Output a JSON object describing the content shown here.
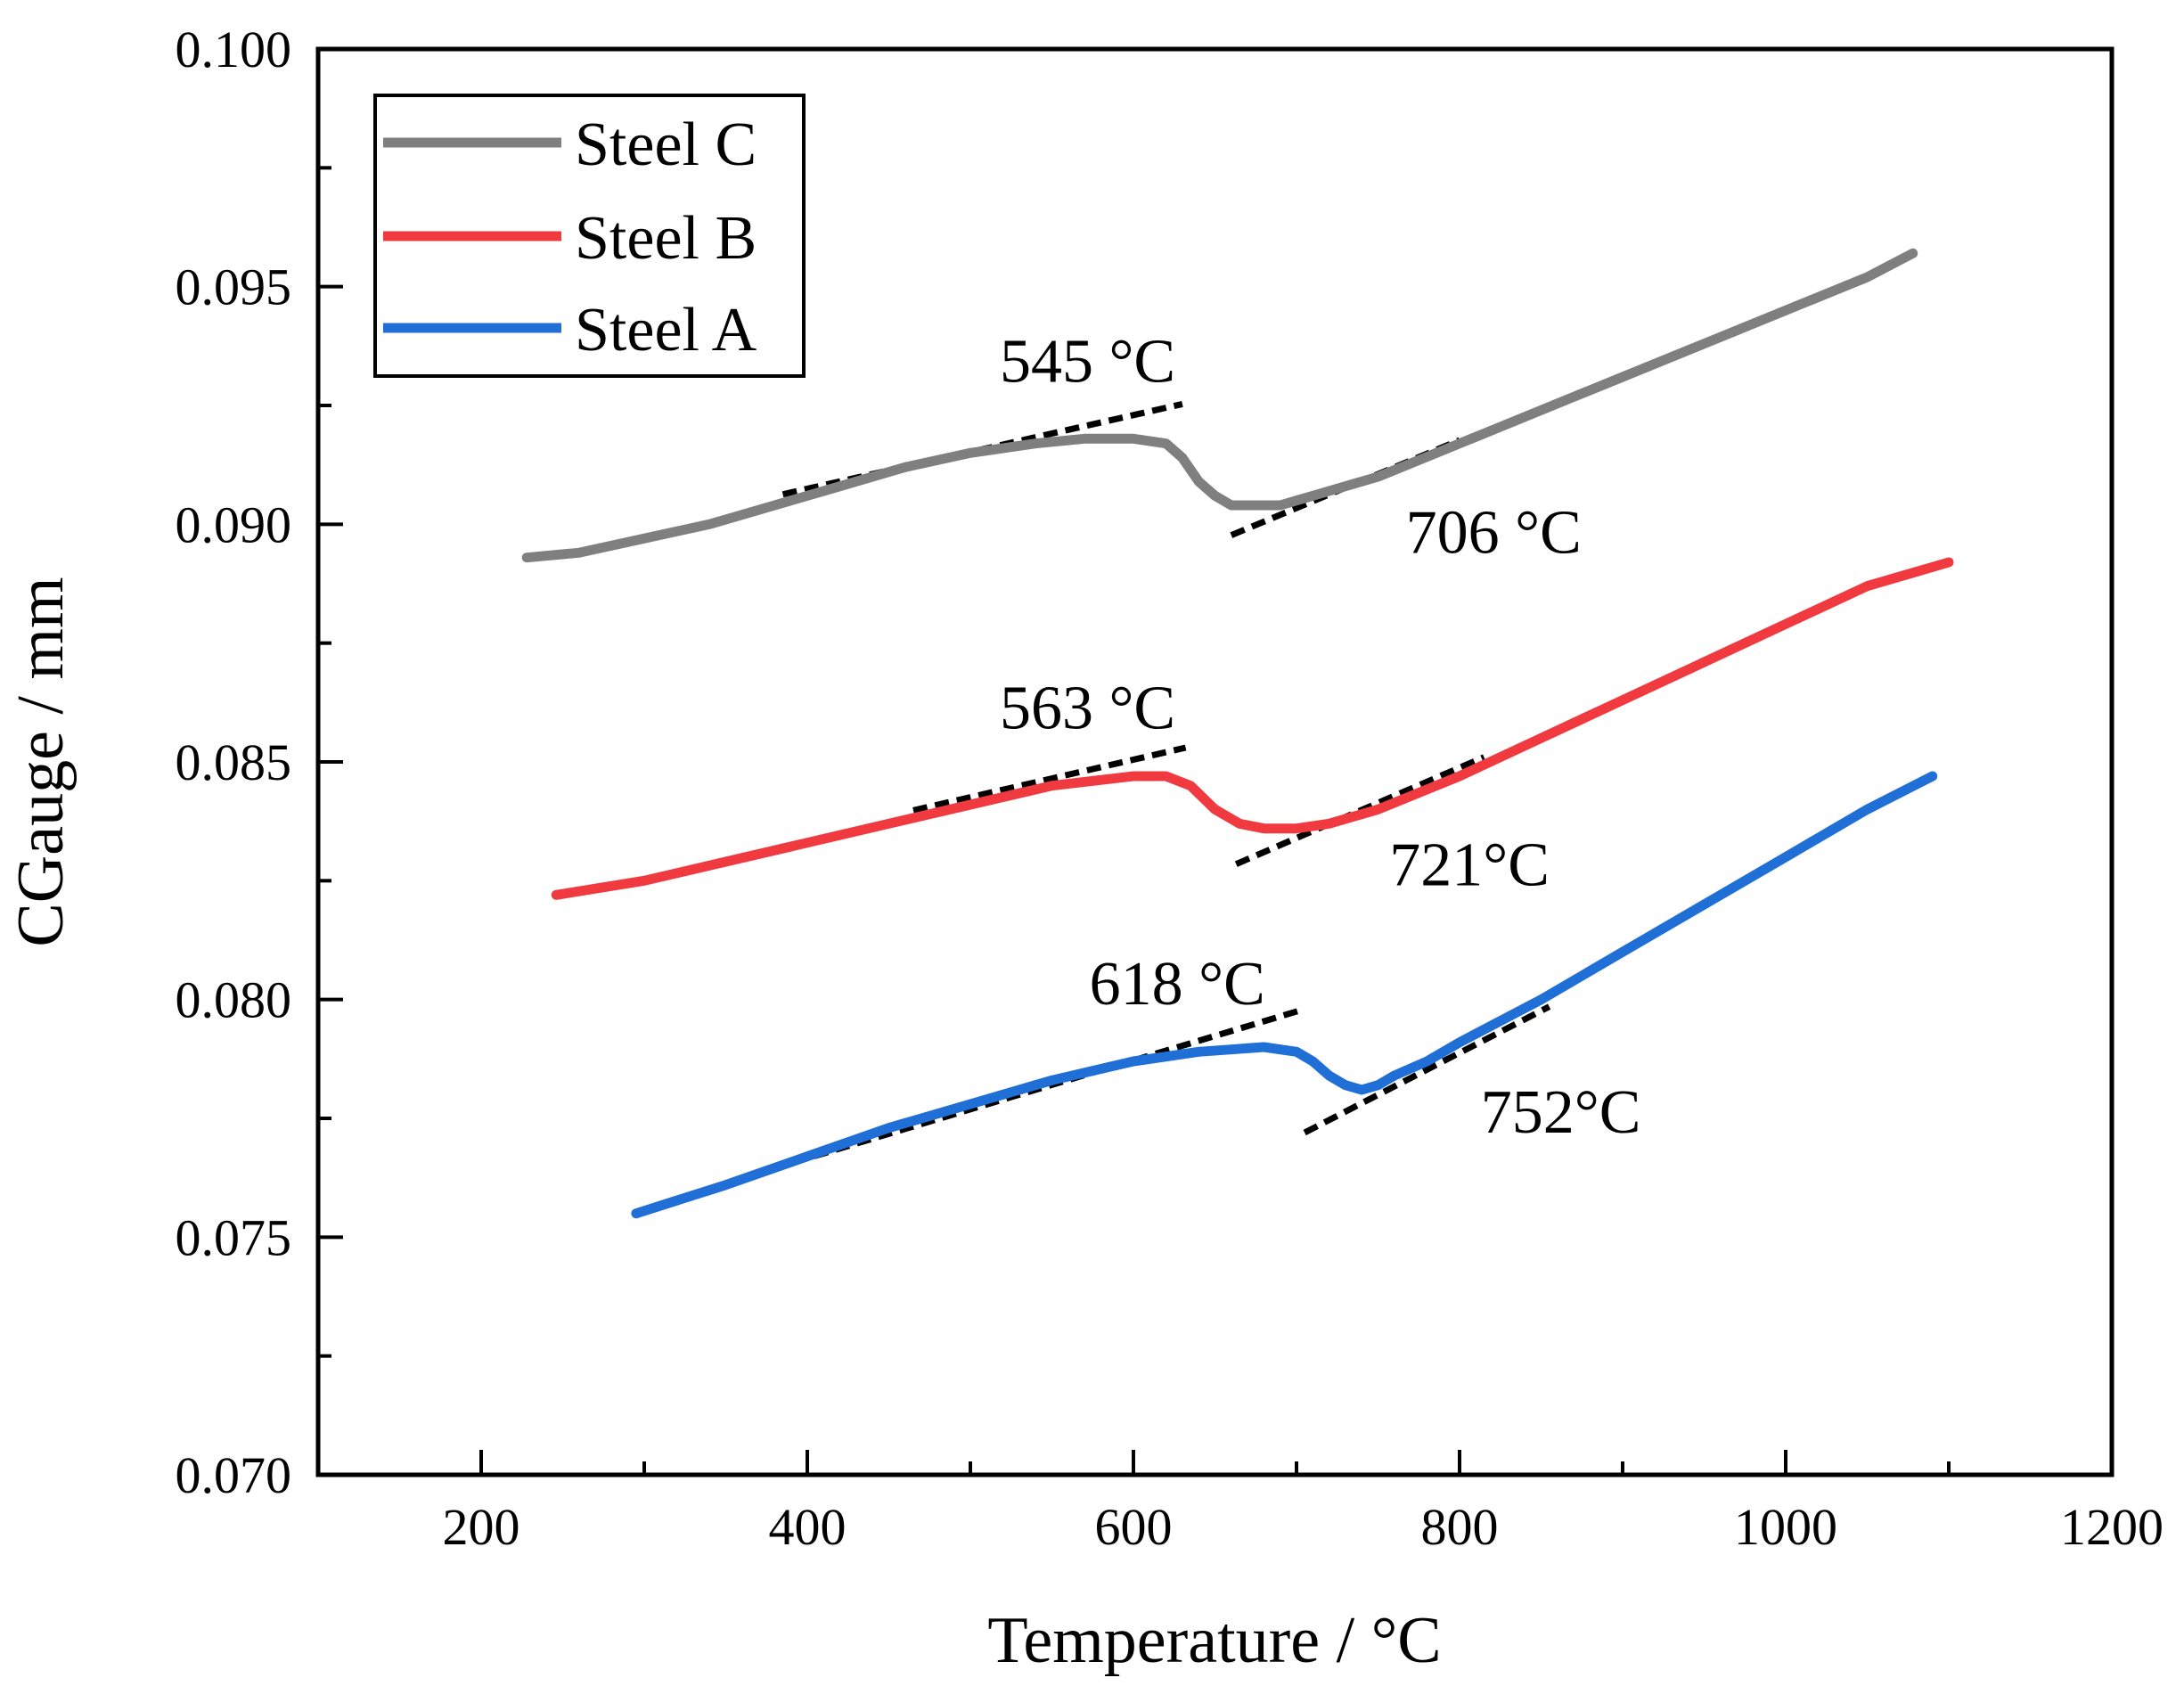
{
  "chart_data": {
    "type": "line",
    "title": "",
    "xlabel": "Temperature / °C",
    "ylabel": "CGauge / mm",
    "xlim": [
      100,
      1200
    ],
    "ylim": [
      0.07,
      0.1
    ],
    "xticks": [
      200,
      400,
      600,
      800,
      1000,
      1200
    ],
    "xtick_labels": [
      "200",
      "400",
      "600",
      "800",
      "1000",
      "1200"
    ],
    "xminor": [
      100,
      300,
      500,
      700,
      900,
      1100
    ],
    "yticks": [
      0.07,
      0.075,
      0.08,
      0.085,
      0.09,
      0.095,
      0.1
    ],
    "ytick_labels": [
      "0.070",
      "0.075",
      "0.080",
      "0.085",
      "0.090",
      "0.095",
      "0.100"
    ],
    "yminor": [
      0.0725,
      0.0775,
      0.0825,
      0.0875,
      0.0925,
      0.0975
    ],
    "legend_position": "top-left",
    "series": [
      {
        "name": "Steel C",
        "color": "#7f7f7f",
        "x": [
          228,
          260,
          300,
          340,
          380,
          420,
          460,
          500,
          540,
          570,
          600,
          620,
          630,
          640,
          650,
          660,
          670,
          680,
          690,
          700,
          720,
          750,
          800,
          850,
          900,
          950,
          1000,
          1050,
          1078
        ],
        "y": [
          0.0893,
          0.0894,
          0.0897,
          0.09,
          0.0904,
          0.0908,
          0.0912,
          0.0915,
          0.0917,
          0.0918,
          0.0918,
          0.0917,
          0.0914,
          0.0909,
          0.0906,
          0.0904,
          0.0904,
          0.0904,
          0.0904,
          0.0905,
          0.0907,
          0.091,
          0.0917,
          0.0924,
          0.0931,
          0.0938,
          0.0945,
          0.0952,
          0.0957
        ]
      },
      {
        "name": "Steel B",
        "color": "#f03a3f",
        "x": [
          246,
          300,
          350,
          400,
          450,
          500,
          550,
          600,
          620,
          635,
          650,
          665,
          680,
          700,
          720,
          750,
          800,
          850,
          900,
          950,
          1000,
          1050,
          1100
        ],
        "y": [
          0.0822,
          0.0825,
          0.0829,
          0.0833,
          0.0837,
          0.0841,
          0.0845,
          0.0847,
          0.0847,
          0.0845,
          0.084,
          0.0837,
          0.0836,
          0.0836,
          0.0837,
          0.084,
          0.0847,
          0.0855,
          0.0863,
          0.0871,
          0.0879,
          0.0887,
          0.0892
        ]
      },
      {
        "name": "Steel A",
        "color": "#1f6fd6",
        "x": [
          295,
          350,
          400,
          450,
          500,
          550,
          600,
          640,
          680,
          700,
          710,
          720,
          730,
          740,
          750,
          760,
          780,
          800,
          850,
          900,
          950,
          1000,
          1050,
          1090
        ],
        "y": [
          0.0755,
          0.0761,
          0.0767,
          0.0773,
          0.0778,
          0.0783,
          0.0787,
          0.0789,
          0.079,
          0.0789,
          0.0787,
          0.0784,
          0.0782,
          0.0781,
          0.0782,
          0.0784,
          0.0787,
          0.0791,
          0.08,
          0.081,
          0.082,
          0.083,
          0.084,
          0.0847
        ]
      }
    ],
    "tangent_lines": [
      {
        "series": "Steel C",
        "x": [
          385,
          630
        ],
        "y": [
          0.09063,
          0.09253
        ]
      },
      {
        "series": "Steel C",
        "x": [
          660,
          800
        ],
        "y": [
          0.08977,
          0.09177
        ]
      },
      {
        "series": "Steel B",
        "x": [
          465,
          632
        ],
        "y": [
          0.08398,
          0.0853
        ]
      },
      {
        "series": "Steel B",
        "x": [
          663,
          815
        ],
        "y": [
          0.08285,
          0.0851
        ]
      },
      {
        "series": "Steel A",
        "x": [
          365,
          705
        ],
        "y": [
          0.0763,
          0.0798
        ]
      },
      {
        "series": "Steel A",
        "x": [
          705,
          855
        ],
        "y": [
          0.0772,
          0.07985
        ]
      }
    ],
    "annotations": [
      {
        "text": "545 °C",
        "x": 518,
        "y": 0.093
      },
      {
        "text": "706 °C",
        "x": 767,
        "y": 0.0894
      },
      {
        "text": "563 °C",
        "x": 518,
        "y": 0.0857
      },
      {
        "text": "721°C",
        "x": 757,
        "y": 0.0824
      },
      {
        "text": "618 °C",
        "x": 573,
        "y": 0.0799
      },
      {
        "text": "752°C",
        "x": 813,
        "y": 0.0772
      }
    ]
  }
}
